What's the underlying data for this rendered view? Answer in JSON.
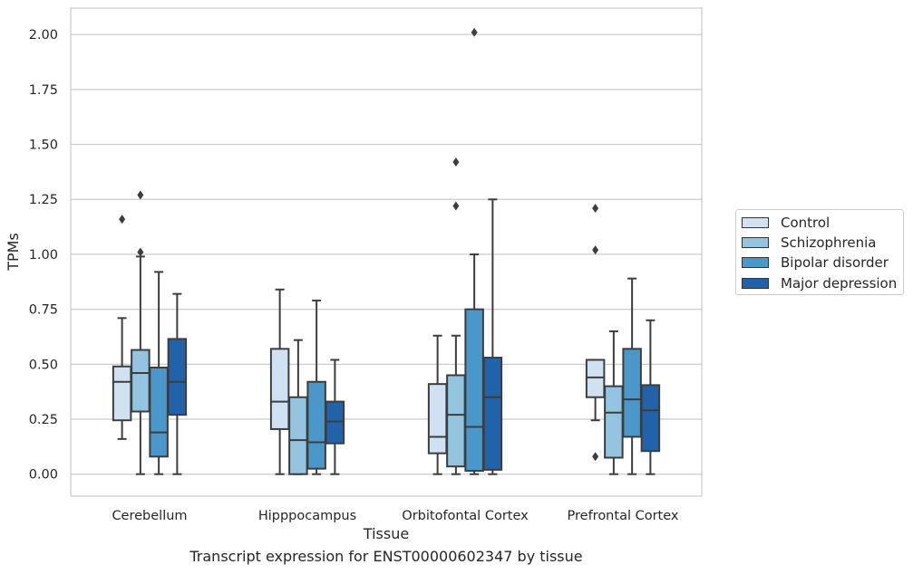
{
  "caption": "Transcript expression for ENST00000602347 by tissue",
  "chart_data": {
    "type": "box",
    "xlabel": "Tissue",
    "ylabel": "TPMs",
    "ylim": [
      -0.1,
      2.12
    ],
    "yticks": [
      "0.00",
      "0.25",
      "0.50",
      "0.75",
      "1.00",
      "1.25",
      "1.50",
      "1.75",
      "2.00"
    ],
    "grid": "horizontal",
    "legend_position": "right",
    "categories": [
      "Cerebellum",
      "Hipppocampus",
      "Orbitofontal Cortex",
      "Prefrontal Cortex"
    ],
    "series": [
      {
        "name": "Control",
        "color": "#d0e1f2",
        "boxes": [
          {
            "whislo": 0.16,
            "q1": 0.245,
            "med": 0.42,
            "q3": 0.49,
            "whishi": 0.71,
            "fliers": [
              1.16
            ]
          },
          {
            "whislo": 0.0,
            "q1": 0.205,
            "med": 0.33,
            "q3": 0.57,
            "whishi": 0.84,
            "fliers": []
          },
          {
            "whislo": 0.0,
            "q1": 0.095,
            "med": 0.17,
            "q3": 0.41,
            "whishi": 0.63,
            "fliers": []
          },
          {
            "whislo": 0.245,
            "q1": 0.35,
            "med": 0.44,
            "q3": 0.52,
            "whishi": 0.52,
            "fliers": [
              1.21,
              1.02,
              0.08
            ]
          }
        ]
      },
      {
        "name": "Schizophrenia",
        "color": "#94c4df",
        "boxes": [
          {
            "whislo": 0.0,
            "q1": 0.285,
            "med": 0.46,
            "q3": 0.565,
            "whishi": 0.99,
            "fliers": [
              1.27,
              1.01
            ]
          },
          {
            "whislo": 0.0,
            "q1": 0.0,
            "med": 0.155,
            "q3": 0.35,
            "whishi": 0.61,
            "fliers": []
          },
          {
            "whislo": 0.0,
            "q1": 0.035,
            "med": 0.27,
            "q3": 0.45,
            "whishi": 0.63,
            "fliers": [
              1.42,
              1.22
            ]
          },
          {
            "whislo": 0.0,
            "q1": 0.075,
            "med": 0.28,
            "q3": 0.4,
            "whishi": 0.65,
            "fliers": []
          }
        ]
      },
      {
        "name": "Bipolar disorder",
        "color": "#4a98c9",
        "boxes": [
          {
            "whislo": 0.0,
            "q1": 0.08,
            "med": 0.19,
            "q3": 0.485,
            "whishi": 0.92,
            "fliers": []
          },
          {
            "whislo": 0.0,
            "q1": 0.025,
            "med": 0.145,
            "q3": 0.42,
            "whishi": 0.79,
            "fliers": []
          },
          {
            "whislo": 0.0,
            "q1": 0.015,
            "med": 0.215,
            "q3": 0.75,
            "whishi": 1.0,
            "fliers": [
              2.01
            ]
          },
          {
            "whislo": 0.0,
            "q1": 0.17,
            "med": 0.34,
            "q3": 0.57,
            "whishi": 0.89,
            "fliers": []
          }
        ]
      },
      {
        "name": "Major depression",
        "color": "#2163aa",
        "boxes": [
          {
            "whislo": 0.0,
            "q1": 0.27,
            "med": 0.42,
            "q3": 0.615,
            "whishi": 0.82,
            "fliers": []
          },
          {
            "whislo": 0.0,
            "q1": 0.14,
            "med": 0.24,
            "q3": 0.33,
            "whishi": 0.52,
            "fliers": []
          },
          {
            "whislo": 0.0,
            "q1": 0.02,
            "med": 0.35,
            "q3": 0.53,
            "whishi": 1.25,
            "fliers": []
          },
          {
            "whislo": 0.0,
            "q1": 0.105,
            "med": 0.29,
            "q3": 0.405,
            "whishi": 0.7,
            "fliers": []
          }
        ]
      }
    ]
  }
}
